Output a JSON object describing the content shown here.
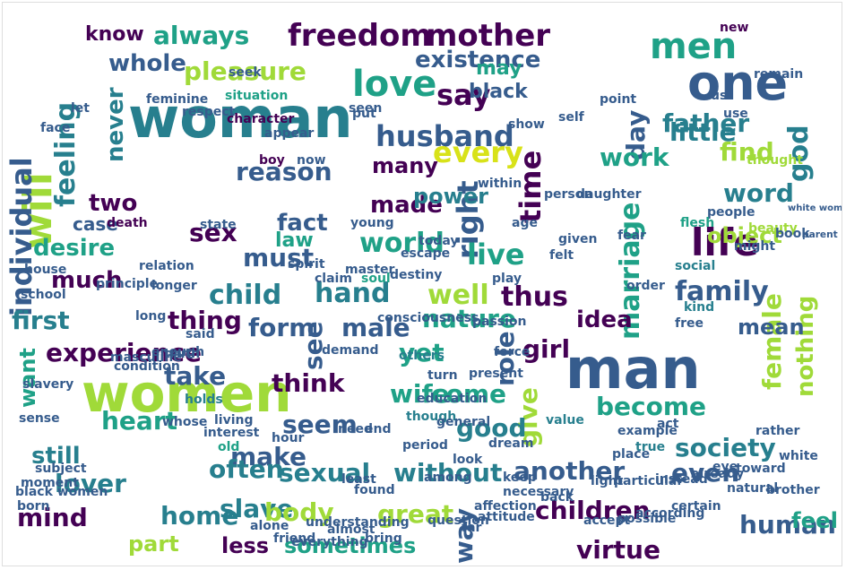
{
  "cloud": {
    "palette": [
      "#440154",
      "#46327e",
      "#365c8d",
      "#277f8e",
      "#1fa187",
      "#4ac16d",
      "#a0da39",
      "#d8e219"
    ],
    "words": [
      {
        "text": "woman",
        "size": 1
      },
      {
        "text": "man",
        "size": 1
      },
      {
        "text": "women",
        "size": 1
      },
      {
        "text": "one",
        "size": 0.85
      },
      {
        "text": "life",
        "size": 0.7
      },
      {
        "text": "men",
        "size": 0.7
      },
      {
        "text": "love",
        "size": 0.68
      },
      {
        "text": "freedom",
        "size": 0.62
      },
      {
        "text": "mother",
        "size": 0.62
      },
      {
        "text": "will",
        "size": 0.62
      },
      {
        "text": "always",
        "size": 0.55
      },
      {
        "text": "pleasure",
        "size": 0.55
      },
      {
        "text": "husband",
        "size": 0.6
      },
      {
        "text": "existence",
        "size": 0.55
      },
      {
        "text": "individual",
        "size": 0.55
      },
      {
        "text": "feeling",
        "size": 0.55
      },
      {
        "text": "say",
        "size": 0.6
      },
      {
        "text": "every",
        "size": 0.6
      },
      {
        "text": "little",
        "size": 0.55
      },
      {
        "text": "father",
        "size": 0.55
      },
      {
        "text": "day",
        "size": 0.55
      },
      {
        "text": "right",
        "size": 0.6
      },
      {
        "text": "time",
        "size": 0.6
      },
      {
        "text": "reason",
        "size": 0.55
      },
      {
        "text": "work",
        "size": 0.55
      },
      {
        "text": "find",
        "size": 0.55
      },
      {
        "text": "word",
        "size": 0.5
      },
      {
        "text": "god",
        "size": 0.5
      },
      {
        "text": "world",
        "size": 0.6
      },
      {
        "text": "live",
        "size": 0.6
      },
      {
        "text": "well",
        "size": 0.6
      },
      {
        "text": "family",
        "size": 0.55
      },
      {
        "text": "marriage",
        "size": 0.55
      },
      {
        "text": "nature",
        "size": 0.55
      },
      {
        "text": "child",
        "size": 0.55
      },
      {
        "text": "hand",
        "size": 0.55
      },
      {
        "text": "thus",
        "size": 0.55
      },
      {
        "text": "female",
        "size": 0.6
      },
      {
        "text": "nothing",
        "size": 0.5
      },
      {
        "text": "thing",
        "size": 0.55
      },
      {
        "text": "form",
        "size": 0.55
      },
      {
        "text": "male",
        "size": 0.6
      },
      {
        "text": "girl",
        "size": 0.55
      },
      {
        "text": "idea",
        "size": 0.5
      },
      {
        "text": "first",
        "size": 0.55
      },
      {
        "text": "experience",
        "size": 0.55
      },
      {
        "text": "think",
        "size": 0.55
      },
      {
        "text": "take",
        "size": 0.6
      },
      {
        "text": "see",
        "size": 0.6
      },
      {
        "text": "yet",
        "size": 0.55
      },
      {
        "text": "role",
        "size": 0.5
      },
      {
        "text": "become",
        "size": 0.55
      },
      {
        "text": "give",
        "size": 0.55
      },
      {
        "text": "wife",
        "size": 0.55
      },
      {
        "text": "come",
        "size": 0.55
      },
      {
        "text": "seem",
        "size": 0.55
      },
      {
        "text": "good",
        "size": 0.5
      },
      {
        "text": "heart",
        "size": 0.55
      },
      {
        "text": "make",
        "size": 0.55
      },
      {
        "text": "still",
        "size": 0.55
      },
      {
        "text": "often",
        "size": 0.6
      },
      {
        "text": "sexual",
        "size": 0.55
      },
      {
        "text": "without",
        "size": 0.55
      },
      {
        "text": "another",
        "size": 0.55
      },
      {
        "text": "even",
        "size": 0.55
      },
      {
        "text": "society",
        "size": 0.55
      },
      {
        "text": "lover",
        "size": 0.55
      },
      {
        "text": "mind",
        "size": 0.55
      },
      {
        "text": "great",
        "size": 0.6
      },
      {
        "text": "children",
        "size": 0.55
      },
      {
        "text": "way",
        "size": 0.5
      },
      {
        "text": "virtue",
        "size": 0.55
      },
      {
        "text": "human",
        "size": 0.55
      },
      {
        "text": "feel",
        "size": 0.55
      },
      {
        "text": "home",
        "size": 0.5
      },
      {
        "text": "slave",
        "size": 0.5
      },
      {
        "text": "body",
        "size": 0.55
      },
      {
        "text": "part",
        "size": 0.5
      },
      {
        "text": "less",
        "size": 0.5
      },
      {
        "text": "sometimes",
        "size": 0.5
      },
      {
        "text": "desire",
        "size": 0.5
      },
      {
        "text": "much",
        "size": 0.5
      },
      {
        "text": "fact",
        "size": 0.55
      },
      {
        "text": "made",
        "size": 0.5
      },
      {
        "text": "must",
        "size": 0.5
      },
      {
        "text": "case",
        "size": 0.5
      },
      {
        "text": "sex",
        "size": 0.45
      },
      {
        "text": "two",
        "size": 0.5
      },
      {
        "text": "never",
        "size": 0.5
      },
      {
        "text": "whole",
        "size": 0.5
      },
      {
        "text": "know",
        "size": 0.5
      },
      {
        "text": "may",
        "size": 0.5
      },
      {
        "text": "black",
        "size": 0.45
      },
      {
        "text": "many",
        "size": 0.5
      },
      {
        "text": "power",
        "size": 0.45
      },
      {
        "text": "object",
        "size": 0.5
      },
      {
        "text": "mean",
        "size": 0.5
      },
      {
        "text": "want",
        "size": 0.5
      },
      {
        "text": "law",
        "size": 0.45
      },
      {
        "text": "new",
        "size": 0.45
      },
      {
        "text": "remain",
        "size": 0.45
      },
      {
        "text": "situation",
        "size": 0.45
      },
      {
        "text": "character",
        "size": 0.3
      },
      {
        "text": "feminine",
        "size": 0.3
      },
      {
        "text": "respect",
        "size": 0.3
      },
      {
        "text": "others",
        "size": 0.3
      },
      {
        "text": "boy",
        "size": 0.3
      },
      {
        "text": "now",
        "size": 0.3
      },
      {
        "text": "young",
        "size": 0.3
      },
      {
        "text": "death",
        "size": 0.3
      },
      {
        "text": "state",
        "size": 0.3
      },
      {
        "text": "relation",
        "size": 0.3
      },
      {
        "text": "longer",
        "size": 0.3
      },
      {
        "text": "long",
        "size": 0.3
      },
      {
        "text": "passion",
        "size": 0.3
      },
      {
        "text": "soul",
        "size": 0.3
      },
      {
        "text": "might",
        "size": 0.3
      },
      {
        "text": "people",
        "size": 0.3
      },
      {
        "text": "flesh",
        "size": 0.3
      },
      {
        "text": "social",
        "size": 0.3
      },
      {
        "text": "kind",
        "size": 0.3
      },
      {
        "text": "free",
        "size": 0.3
      },
      {
        "text": "order",
        "size": 0.3
      },
      {
        "text": "said",
        "size": 0.3
      },
      {
        "text": "truth",
        "size": 0.3
      },
      {
        "text": "demand",
        "size": 0.3
      },
      {
        "text": "condition",
        "size": 0.3
      },
      {
        "text": "masculine",
        "size": 0.3
      },
      {
        "text": "though",
        "size": 0.3
      },
      {
        "text": "education",
        "size": 0.3
      },
      {
        "text": "need",
        "size": 0.3
      },
      {
        "text": "interest",
        "size": 0.3
      },
      {
        "text": "whose",
        "size": 0.3
      },
      {
        "text": "living",
        "size": 0.3
      },
      {
        "text": "general",
        "size": 0.3
      },
      {
        "text": "dream",
        "size": 0.3
      },
      {
        "text": "value",
        "size": 0.3
      },
      {
        "text": "example",
        "size": 0.3
      },
      {
        "text": "act",
        "size": 0.3
      },
      {
        "text": "true",
        "size": 0.3
      },
      {
        "text": "place",
        "size": 0.3
      },
      {
        "text": "eye",
        "size": 0.35
      },
      {
        "text": "toward",
        "size": 0.3
      },
      {
        "text": "white",
        "size": 0.3
      },
      {
        "text": "subject",
        "size": 0.3
      },
      {
        "text": "black women",
        "size": 0.3
      },
      {
        "text": "alone",
        "size": 0.3
      },
      {
        "text": "found",
        "size": 0.3
      },
      {
        "text": "among",
        "size": 0.3
      },
      {
        "text": "accept",
        "size": 0.3
      },
      {
        "text": "necessary",
        "size": 0.3
      },
      {
        "text": "affection",
        "size": 0.3
      },
      {
        "text": "attitude",
        "size": 0.3
      },
      {
        "text": "question",
        "size": 0.3
      },
      {
        "text": "friend",
        "size": 0.3
      },
      {
        "text": "everything",
        "size": 0.3
      },
      {
        "text": "certain",
        "size": 0.3
      },
      {
        "text": "instead",
        "size": 0.3
      },
      {
        "text": "already",
        "size": 0.3
      },
      {
        "text": "far",
        "size": 0.3
      },
      {
        "text": "beauty",
        "size": 0.3
      },
      {
        "text": "thought",
        "size": 0.3
      },
      {
        "text": "us",
        "size": 0.3
      },
      {
        "text": "use",
        "size": 0.3
      },
      {
        "text": "point",
        "size": 0.3
      },
      {
        "text": "self",
        "size": 0.3
      },
      {
        "text": "show",
        "size": 0.3
      },
      {
        "text": "seen",
        "size": 0.3
      },
      {
        "text": "put",
        "size": 0.3
      },
      {
        "text": "appear",
        "size": 0.3
      },
      {
        "text": "seek",
        "size": 0.3
      },
      {
        "text": "face",
        "size": 0.3
      },
      {
        "text": "let",
        "size": 0.3
      },
      {
        "text": "given",
        "size": 0.3
      },
      {
        "text": "daughter",
        "size": 0.3
      },
      {
        "text": "person",
        "size": 0.3
      },
      {
        "text": "within",
        "size": 0.3
      },
      {
        "text": "fear",
        "size": 0.3
      },
      {
        "text": "today",
        "size": 0.3
      },
      {
        "text": "felt",
        "size": 0.3
      },
      {
        "text": "age",
        "size": 0.3
      },
      {
        "text": "escape",
        "size": 0.3
      },
      {
        "text": "destiny",
        "size": 0.3
      },
      {
        "text": "master",
        "size": 0.3
      },
      {
        "text": "claim",
        "size": 0.3
      },
      {
        "text": "spirit",
        "size": 0.3
      },
      {
        "text": "consciousness",
        "size": 0.3
      },
      {
        "text": "play",
        "size": 0.3
      },
      {
        "text": "force",
        "size": 0.3
      },
      {
        "text": "turn",
        "size": 0.3
      },
      {
        "text": "present",
        "size": 0.3
      },
      {
        "text": "end",
        "size": 0.3
      },
      {
        "text": "period",
        "size": 0.3
      },
      {
        "text": "look",
        "size": 0.3
      },
      {
        "text": "keep",
        "size": 0.3
      },
      {
        "text": "back",
        "size": 0.3
      },
      {
        "text": "least",
        "size": 0.3
      },
      {
        "text": "hour",
        "size": 0.3
      },
      {
        "text": "understanding",
        "size": 0.3
      },
      {
        "text": "almost",
        "size": 0.3
      },
      {
        "text": "bring",
        "size": 0.3
      },
      {
        "text": "light",
        "size": 0.3
      },
      {
        "text": "particular",
        "size": 0.3
      },
      {
        "text": "according",
        "size": 0.3
      },
      {
        "text": "possible",
        "size": 0.3
      },
      {
        "text": "natural",
        "size": 0.3
      },
      {
        "text": "rather",
        "size": 0.3
      },
      {
        "text": "brother",
        "size": 0.3
      },
      {
        "text": "book",
        "size": 0.3
      },
      {
        "text": "white women",
        "size": 0.3
      },
      {
        "text": "parent",
        "size": 0.3
      },
      {
        "text": "principle",
        "size": 0.3
      },
      {
        "text": "house",
        "size": 0.3
      },
      {
        "text": "school",
        "size": 0.3
      },
      {
        "text": "slavery",
        "size": 0.3
      },
      {
        "text": "sense",
        "size": 0.3
      },
      {
        "text": "moment",
        "size": 0.3
      },
      {
        "text": "born",
        "size": 0.3
      },
      {
        "text": "enough",
        "size": 0.3
      },
      {
        "text": "holds",
        "size": 0.3
      },
      {
        "text": "old",
        "size": 0.3
      }
    ]
  }
}
